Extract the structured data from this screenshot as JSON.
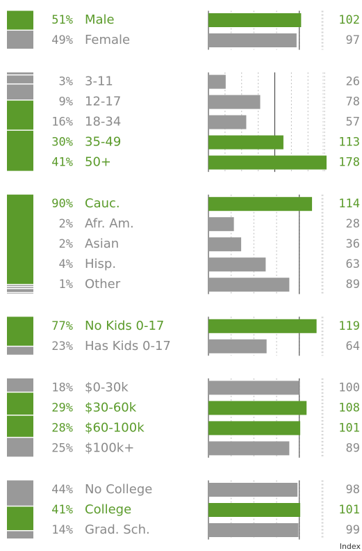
{
  "chart_data": {
    "type": "demographic-index",
    "reference": 100,
    "colors": {
      "above": "#5b9b2b",
      "below": "#999999",
      "above_text": "#5b9b2b",
      "below_text": "#8a8a8a"
    },
    "index_label": "Index",
    "groups": [
      {
        "xlim": [
          0,
          130
        ],
        "xticks": [
          0,
          25,
          50,
          75,
          100,
          125
        ],
        "rows": [
          {
            "pct": 51,
            "pct_label": "51%",
            "label": "Male",
            "index": 102
          },
          {
            "pct": 49,
            "pct_label": "49%",
            "label": "Female",
            "index": 97
          }
        ]
      },
      {
        "xlim": [
          0,
          178
        ],
        "xticks": [
          0,
          25,
          50,
          75,
          100,
          125,
          150,
          175
        ],
        "rows": [
          {
            "pct": 3,
            "pct_label": "3%",
            "label": "3-11",
            "index": 26
          },
          {
            "pct": 9,
            "pct_label": "9%",
            "label": "12-17",
            "index": 78
          },
          {
            "pct": 16,
            "pct_label": "16%",
            "label": "18-34",
            "index": 57
          },
          {
            "pct": 30,
            "pct_label": "30%",
            "label": "35-49",
            "index": 113
          },
          {
            "pct": 41,
            "pct_label": "41%",
            "label": "50+",
            "index": 178
          }
        ]
      },
      {
        "xlim": [
          0,
          130
        ],
        "xticks": [
          0,
          25,
          50,
          75,
          100,
          125
        ],
        "rows": [
          {
            "pct": 90,
            "pct_label": "90%",
            "label": "Cauc.",
            "index": 114
          },
          {
            "pct": 2,
            "pct_label": "2%",
            "label": "Afr. Am.",
            "index": 28
          },
          {
            "pct": 2,
            "pct_label": "2%",
            "label": "Asian",
            "index": 36
          },
          {
            "pct": 4,
            "pct_label": "4%",
            "label": "Hisp.",
            "index": 63
          },
          {
            "pct": 1,
            "pct_label": "1%",
            "label": "Other",
            "index": 89
          }
        ]
      },
      {
        "xlim": [
          0,
          130
        ],
        "xticks": [
          0,
          25,
          50,
          75,
          100,
          125
        ],
        "rows": [
          {
            "pct": 77,
            "pct_label": "77%",
            "label": "No Kids 0-17",
            "index": 119
          },
          {
            "pct": 23,
            "pct_label": "23%",
            "label": "Has Kids 0-17",
            "index": 64
          }
        ]
      },
      {
        "xlim": [
          0,
          130
        ],
        "xticks": [
          0,
          25,
          50,
          75,
          100,
          125
        ],
        "rows": [
          {
            "pct": 18,
            "pct_label": "18%",
            "label": "$0-30k",
            "index": 100
          },
          {
            "pct": 29,
            "pct_label": "29%",
            "label": "$30-60k",
            "index": 108
          },
          {
            "pct": 28,
            "pct_label": "28%",
            "label": "$60-100k",
            "index": 101
          },
          {
            "pct": 25,
            "pct_label": "25%",
            "label": "$100k+",
            "index": 89
          }
        ]
      },
      {
        "xlim": [
          0,
          130
        ],
        "xticks": [
          0,
          25,
          50,
          75,
          100,
          125
        ],
        "rows": [
          {
            "pct": 44,
            "pct_label": "44%",
            "label": "No College",
            "index": 98
          },
          {
            "pct": 41,
            "pct_label": "41%",
            "label": "College",
            "index": 101
          },
          {
            "pct": 14,
            "pct_label": "14%",
            "label": "Grad. Sch.",
            "index": 99
          }
        ]
      }
    ]
  }
}
